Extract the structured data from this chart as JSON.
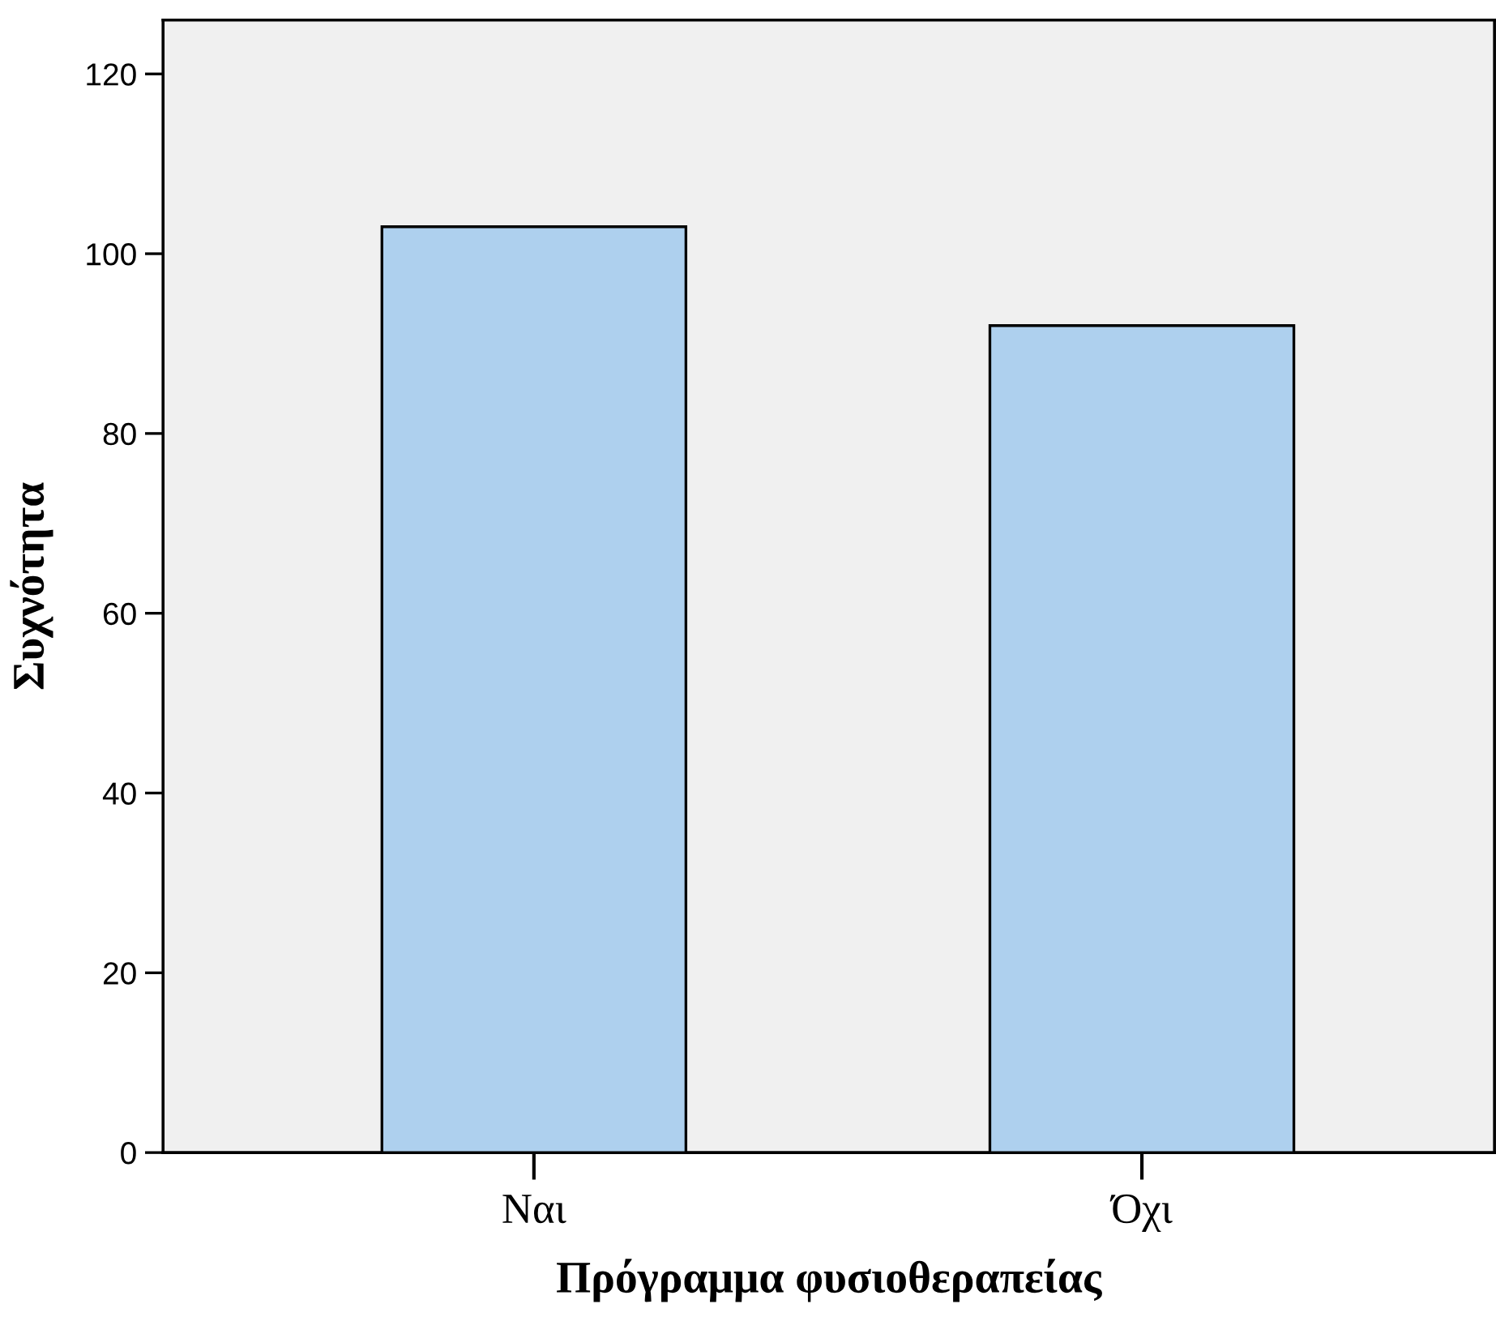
{
  "chart_data": {
    "type": "bar",
    "xlabel": "Πρόγραμμα φυσιοθεραπείας",
    "ylabel": "Συχνότητα",
    "categories": [
      "Ναι",
      "Όχι"
    ],
    "values": [
      103,
      92
    ],
    "color": "#aed0ee",
    "ylim": [
      0,
      126
    ],
    "yticks": [
      0,
      20,
      40,
      60,
      80,
      100,
      120
    ],
    "grid": false
  }
}
